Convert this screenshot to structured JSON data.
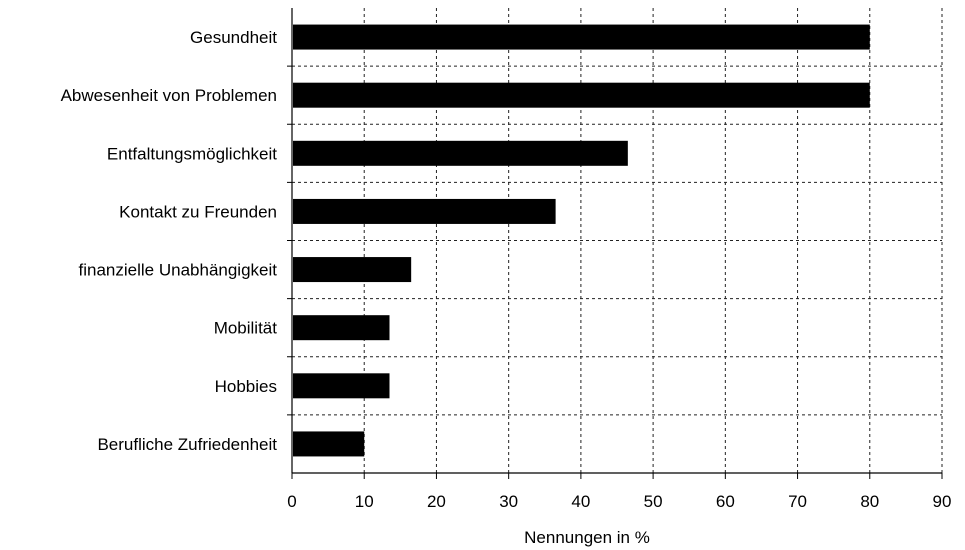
{
  "chart_data": {
    "type": "bar",
    "orientation": "horizontal",
    "categories": [
      "Gesundheit",
      "Abwesenheit von Problemen",
      "Entfaltungsmöglichkeit",
      "Kontakt zu Freunden",
      "finanzielle Unabhängigkeit",
      "Mobilität",
      "Hobbies",
      "Berufliche Zufriedenheit"
    ],
    "values": [
      80,
      80,
      46.5,
      36.5,
      16.5,
      13.5,
      13.5,
      10
    ],
    "xlabel": "Nennungen in %",
    "ylabel": "",
    "xlim": [
      0,
      90
    ],
    "xticks": [
      "0",
      "10",
      "20",
      "30",
      "40",
      "50",
      "60",
      "70",
      "80",
      "90"
    ],
    "grid": "dashed",
    "bar_color": "#000000"
  }
}
